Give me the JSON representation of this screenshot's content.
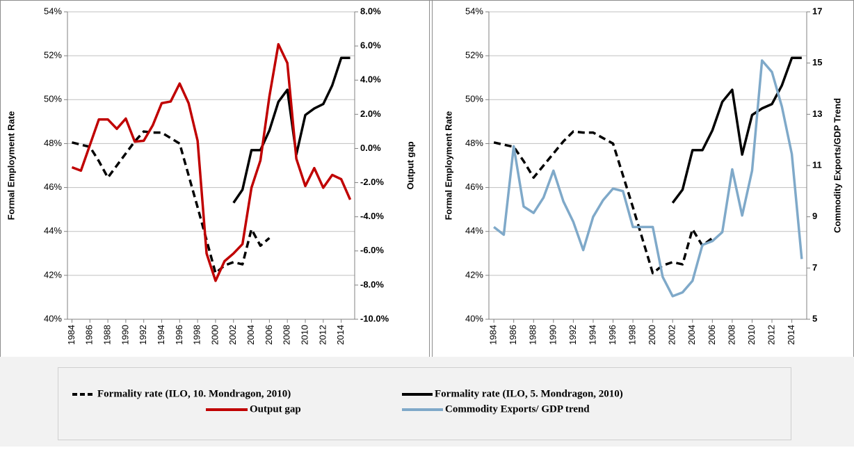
{
  "chart_data": [
    {
      "type": "line",
      "ylabel": "Formal Employment Rate",
      "y2label": "Output gap",
      "x": [
        1984,
        1985,
        1986,
        1987,
        1988,
        1989,
        1990,
        1991,
        1992,
        1993,
        1994,
        1995,
        1996,
        1997,
        1998,
        1999,
        2000,
        2001,
        2002,
        2003,
        2004,
        2005,
        2006,
        2007,
        2008,
        2009,
        2010,
        2011,
        2012,
        2013,
        2014,
        2015
      ],
      "xlim": [
        1983.5,
        2015.5
      ],
      "xticks": [
        1984,
        1986,
        1988,
        1990,
        1992,
        1994,
        1996,
        1998,
        2000,
        2002,
        2004,
        2006,
        2008,
        2010,
        2012,
        2014
      ],
      "ylim": [
        40,
        54
      ],
      "yticks": [
        {
          "value": 40,
          "label": "40%"
        },
        {
          "value": 42,
          "label": "42%"
        },
        {
          "value": 44,
          "label": "44%"
        },
        {
          "value": 46,
          "label": "46%"
        },
        {
          "value": 48,
          "label": "48%"
        },
        {
          "value": 50,
          "label": "50%"
        },
        {
          "value": 52,
          "label": "52%"
        },
        {
          "value": 54,
          "label": "54%"
        }
      ],
      "y2lim": [
        -10,
        8
      ],
      "y2ticks": [
        {
          "value": -10,
          "label": "-10.0%"
        },
        {
          "value": -8,
          "label": "-8.0%"
        },
        {
          "value": -6,
          "label": "-6.0%"
        },
        {
          "value": -4,
          "label": "-4.0%"
        },
        {
          "value": -2,
          "label": "-2.0%"
        },
        {
          "value": 0,
          "label": "0.0%"
        },
        {
          "value": 2,
          "label": "2.0%"
        },
        {
          "value": 4,
          "label": "4.0%"
        },
        {
          "value": 6,
          "label": "6.0%"
        },
        {
          "value": 8,
          "label": "8.0%"
        }
      ],
      "grid": true,
      "series": [
        {
          "name": "Formality rate (ILO, 10. Mondragon, 2010)",
          "color": "#000000",
          "dash": true,
          "values": [
            48.05,
            47.95,
            47.85,
            47.2,
            46.45,
            47.0,
            47.55,
            48.1,
            48.55,
            48.5,
            48.5,
            48.25,
            48.0,
            46.55,
            45.1,
            43.6,
            42.1,
            42.45,
            42.6,
            42.5,
            44.1,
            43.35,
            43.7,
            null,
            null,
            null,
            null,
            null,
            null,
            null,
            null,
            null
          ]
        },
        {
          "name": "Formality rate (ILO, 5. Mondragon, 2010)",
          "color": "#000000",
          "dash": false,
          "values": [
            null,
            null,
            null,
            null,
            null,
            null,
            null,
            null,
            null,
            null,
            null,
            null,
            null,
            null,
            null,
            null,
            null,
            null,
            45.3,
            45.9,
            47.7,
            47.7,
            48.6,
            49.9,
            50.45,
            47.5,
            49.3,
            49.6,
            49.8,
            50.65,
            51.9,
            51.9
          ]
        },
        {
          "name": "Output gap",
          "color": "#c00000",
          "dash": false,
          "axis": "y2",
          "values": [
            -1.1,
            -1.3,
            0.2,
            1.7,
            1.7,
            1.15,
            1.75,
            0.4,
            0.45,
            1.35,
            2.65,
            2.75,
            3.8,
            2.65,
            0.45,
            -6.15,
            -7.75,
            -6.6,
            -6.15,
            -5.6,
            -2.3,
            -0.7,
            3.05,
            6.1,
            5.0,
            -0.6,
            -2.2,
            -1.15,
            -2.3,
            -1.55,
            -1.8,
            -3.0
          ]
        }
      ]
    },
    {
      "type": "line",
      "ylabel": "Formal Employment Rate",
      "y2label": "Commodity Exports/GDP Trend",
      "x": [
        1984,
        1985,
        1986,
        1987,
        1988,
        1989,
        1990,
        1991,
        1992,
        1993,
        1994,
        1995,
        1996,
        1997,
        1998,
        1999,
        2000,
        2001,
        2002,
        2003,
        2004,
        2005,
        2006,
        2007,
        2008,
        2009,
        2010,
        2011,
        2012,
        2013,
        2014,
        2015
      ],
      "xlim": [
        1983.5,
        2015.5
      ],
      "xticks": [
        1984,
        1986,
        1988,
        1990,
        1992,
        1994,
        1996,
        1998,
        2000,
        2002,
        2004,
        2006,
        2008,
        2010,
        2012,
        2014
      ],
      "ylim": [
        40,
        54
      ],
      "yticks": [
        {
          "value": 40,
          "label": "40%"
        },
        {
          "value": 42,
          "label": "42%"
        },
        {
          "value": 44,
          "label": "44%"
        },
        {
          "value": 46,
          "label": "46%"
        },
        {
          "value": 48,
          "label": "48%"
        },
        {
          "value": 50,
          "label": "50%"
        },
        {
          "value": 52,
          "label": "52%"
        },
        {
          "value": 54,
          "label": "54%"
        }
      ],
      "y2lim": [
        5,
        17
      ],
      "y2ticks": [
        5,
        7,
        9,
        11,
        13,
        15,
        17
      ],
      "grid": true,
      "series": [
        {
          "color": "#000000",
          "dash": true,
          "values": [
            48.05,
            47.95,
            47.85,
            47.2,
            46.45,
            47.0,
            47.55,
            48.1,
            48.55,
            48.5,
            48.5,
            48.25,
            48.0,
            46.55,
            45.1,
            43.6,
            42.1,
            42.45,
            42.6,
            42.5,
            44.1,
            43.35,
            43.7,
            null,
            null,
            null,
            null,
            null,
            null,
            null,
            null,
            null
          ]
        },
        {
          "color": "#000000",
          "dash": false,
          "values": [
            null,
            null,
            null,
            null,
            null,
            null,
            null,
            null,
            null,
            null,
            null,
            null,
            null,
            null,
            null,
            null,
            null,
            null,
            45.3,
            45.9,
            47.7,
            47.7,
            48.6,
            49.9,
            50.45,
            47.5,
            49.3,
            49.6,
            49.8,
            50.65,
            51.9,
            51.9
          ]
        },
        {
          "name": "Commodity Exports/ GDP trend",
          "color": "#7fa9c9",
          "dash": false,
          "axis": "y2",
          "values": [
            8.6,
            8.3,
            11.75,
            9.4,
            9.15,
            9.75,
            10.8,
            9.6,
            8.8,
            7.7,
            9.0,
            9.65,
            10.1,
            10.0,
            8.6,
            8.6,
            8.6,
            6.65,
            5.9,
            6.05,
            6.5,
            7.9,
            8.05,
            8.4,
            10.85,
            9.05,
            10.8,
            15.1,
            14.65,
            13.3,
            11.45,
            7.35
          ]
        }
      ]
    }
  ]
}
